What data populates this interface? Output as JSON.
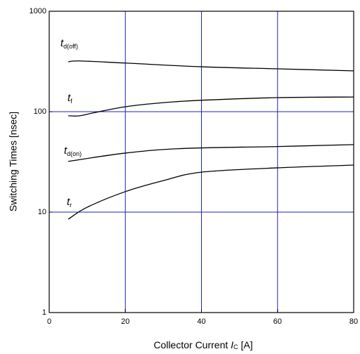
{
  "chart_data": {
    "type": "line",
    "xlabel": "Collector Current",
    "xlabel_symbol": "I",
    "xlabel_subscript": "C",
    "xlabel_unit": "[A]",
    "ylabel": "Switching Times [nsec]",
    "xlim": [
      0,
      80
    ],
    "xticks": [
      0,
      20,
      40,
      60,
      80
    ],
    "ylim": [
      1,
      1000
    ],
    "yticks": [
      1,
      10,
      100,
      1000
    ],
    "log_y": true,
    "grid": true,
    "grid_color": "#2020c0",
    "series": [
      {
        "name": "t",
        "subscript": "d(off)",
        "color": "#000000",
        "x": [
          5,
          8,
          20,
          40,
          60,
          80
        ],
        "values": [
          314,
          320,
          305,
          280,
          267,
          255
        ]
      },
      {
        "name": "t",
        "subscript": "f",
        "color": "#000000",
        "x": [
          5,
          8,
          12,
          20,
          30,
          40,
          60,
          80
        ],
        "values": [
          91,
          91,
          98,
          112,
          123,
          130,
          138,
          140
        ]
      },
      {
        "name": "t",
        "subscript": "d(on)",
        "color": "#000000",
        "x": [
          5,
          20,
          35,
          60,
          80
        ],
        "values": [
          32,
          38.7,
          43,
          45,
          47
        ]
      },
      {
        "name": "t",
        "subscript": "r",
        "color": "#000000",
        "x": [
          5,
          10,
          20,
          30,
          40,
          60,
          80
        ],
        "values": [
          8.5,
          11.2,
          16,
          20.6,
          25,
          27.6,
          29.4
        ]
      }
    ]
  }
}
